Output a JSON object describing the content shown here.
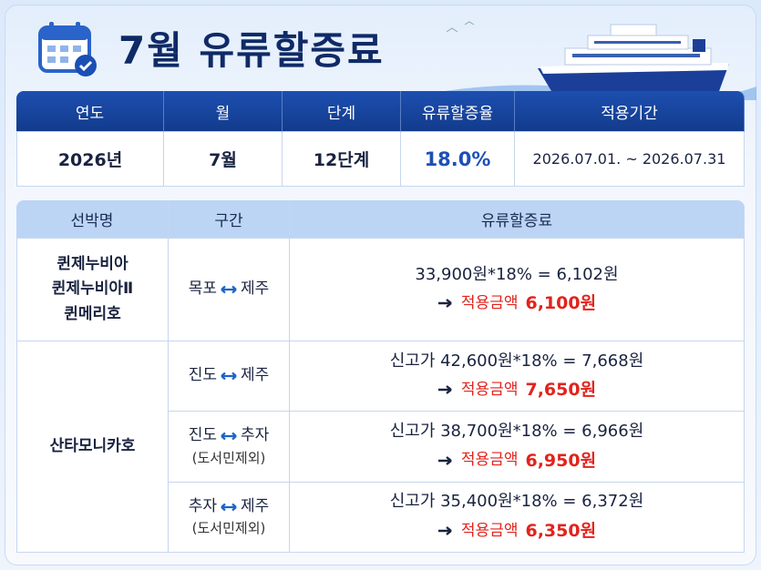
{
  "header": {
    "title": "7월 유류할증료"
  },
  "info_table": {
    "headers": [
      "연도",
      "월",
      "단계",
      "유류할증율",
      "적용기간"
    ],
    "row": [
      "2026년",
      "7월",
      "12단계",
      "18.0%",
      "2026.07.01. ~ 2026.07.31"
    ]
  },
  "fare_table": {
    "headers": [
      "선박명",
      "구간",
      "유류할증료"
    ],
    "groups": [
      {
        "ships": [
          "퀸제누비아",
          "퀸제누비아Ⅱ",
          "퀸메리호"
        ],
        "routes": [
          {
            "from": "목포",
            "to": "제주",
            "calc": "33,900원*18% = 6,102원",
            "label": "적용금액",
            "amount": "6,100원"
          }
        ]
      },
      {
        "ships": [
          "산타모니카호"
        ],
        "routes": [
          {
            "from": "진도",
            "to": "제주",
            "calc": "신고가 42,600원*18% = 7,668원",
            "label": "적용금액",
            "amount": "7,650원"
          },
          {
            "from": "진도",
            "to": "추자",
            "note": "(도서민제외)",
            "calc": "신고가 38,700원*18% = 6,966원",
            "label": "적용금액",
            "amount": "6,950원"
          },
          {
            "from": "추자",
            "to": "제주",
            "note": "(도서민제외)",
            "calc": "신고가 35,400원*18% = 6,372원",
            "label": "적용금액",
            "amount": "6,350원"
          }
        ]
      }
    ]
  }
}
